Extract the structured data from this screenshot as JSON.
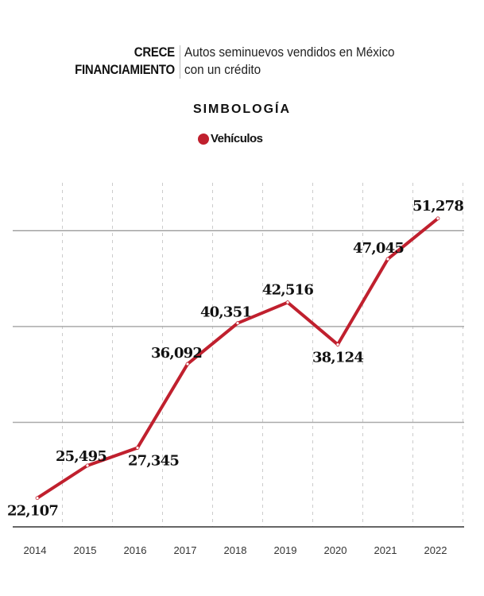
{
  "header": {
    "kicker_line1": "CRECE",
    "kicker_line2": "FINANCIAMIENTO",
    "subtitle_line1": "Autos seminuevos vendidos en México",
    "subtitle_line2": "con un crédito"
  },
  "legend": {
    "title": "SIMBOLOGÍA",
    "items": [
      {
        "label": "Vehículos",
        "color": "#c0202e"
      }
    ]
  },
  "chart_data": {
    "type": "line",
    "title": "Autos seminuevos vendidos en México con un crédito",
    "categories": [
      "2014",
      "2015",
      "2016",
      "2017",
      "2018",
      "2019",
      "2020",
      "2021",
      "2022"
    ],
    "series": [
      {
        "name": "Vehículos",
        "color": "#c0202e",
        "values": [
          22107,
          25495,
          27345,
          36092,
          40351,
          42516,
          38124,
          47045,
          51278
        ]
      }
    ],
    "data_labels": [
      "22,107",
      "25,495",
      "27,345",
      "36,092",
      "40,351",
      "42,516",
      "38,124",
      "47,045",
      "51,278"
    ],
    "ylim": [
      19100,
      55000
    ],
    "grid_values": [
      30000,
      40000,
      50000
    ],
    "grid": true,
    "legend_placement": "top-center"
  }
}
